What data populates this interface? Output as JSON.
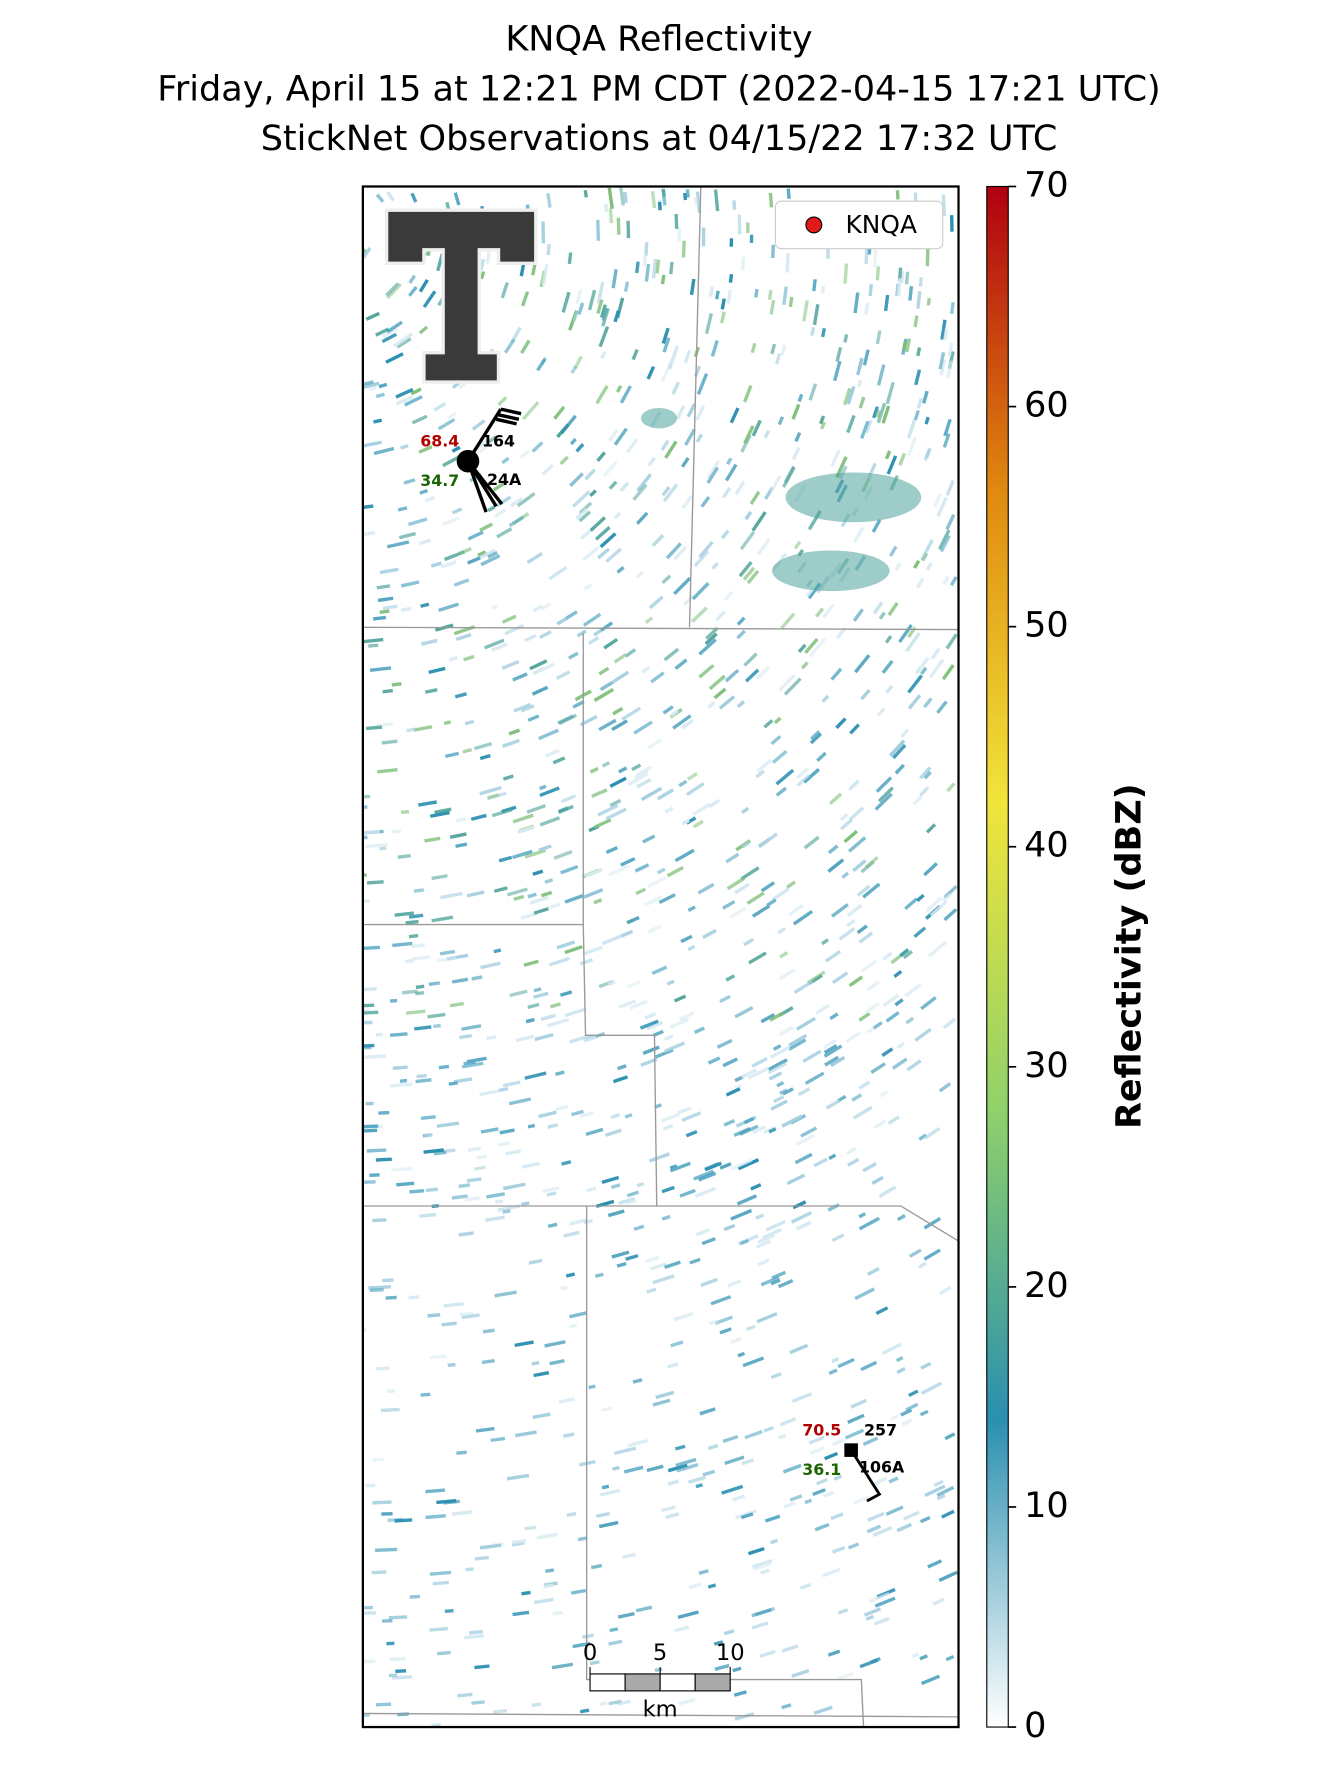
{
  "title": [
    "KNQA Reflectivity",
    "Friday, April 15 at 12:21 PM CDT (2022-04-15 17:21 UTC)",
    "StickNet Observations at 04/15/22 17:32 UTC"
  ],
  "legend": {
    "label": "KNQA",
    "color": "#e31a1c"
  },
  "colorbar": {
    "label": "Reflectivity (dBZ)",
    "lim": [
      0,
      70
    ],
    "ticks": [
      0,
      10,
      20,
      30,
      40,
      50,
      60,
      70
    ],
    "colors": [
      "#ffffff",
      "#2a8fb0",
      "#8fd16a",
      "#f1e43a",
      "#e08b10",
      "#b00010"
    ]
  },
  "stations": [
    {
      "temperature": 68.4,
      "pressure": 164,
      "dewpoint": 34.7,
      "id": "24A"
    },
    {
      "temperature": 70.5,
      "pressure": 257,
      "dewpoint": 36.1,
      "id": "106A"
    }
  ],
  "scale_bar": {
    "ticks": [
      0,
      5,
      10
    ],
    "unit": "km"
  }
}
